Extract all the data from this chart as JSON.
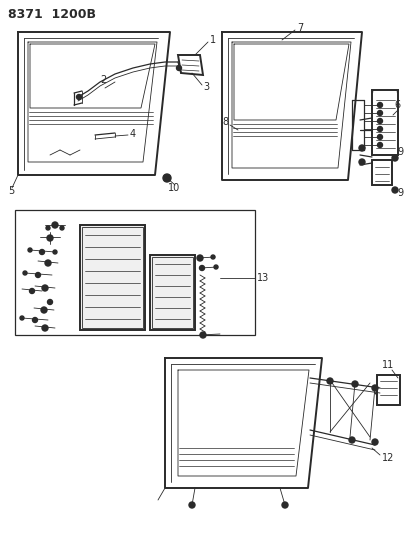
{
  "title": "8371 1200B",
  "bg_color": "#ffffff",
  "line_color": "#2a2a2a",
  "label_color": "#111111",
  "figsize": [
    4.04,
    5.33
  ],
  "dpi": 100
}
